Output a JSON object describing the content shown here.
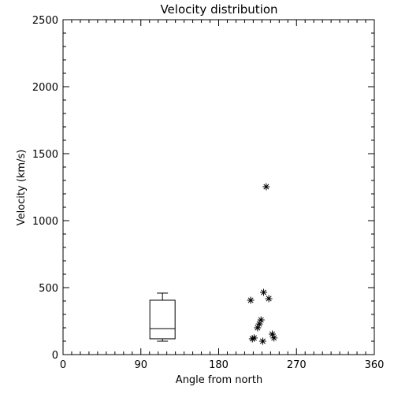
{
  "chart_data": {
    "type": "scatter",
    "title": "Velocity distribution",
    "x_label": "Angle from north",
    "y_label": "Velocity (km/s)",
    "xlim": [
      0,
      360
    ],
    "xticks": [
      0,
      90,
      180,
      270,
      360
    ],
    "ylim": [
      0,
      2500
    ],
    "yticks": [
      0,
      500,
      1000,
      1500,
      2000,
      2500
    ],
    "color": "#000000",
    "x": [
      217,
      232,
      238,
      235,
      229,
      227,
      225,
      221,
      219,
      231,
      242,
      244
    ],
    "values": [
      406,
      465,
      418,
      1253,
      259,
      229,
      200,
      124,
      118,
      100,
      153,
      124
    ],
    "box": {
      "x": 115,
      "whisker_low": 100,
      "q1": 118,
      "median": 194,
      "q3": 406,
      "whisker_high": 459
    }
  }
}
